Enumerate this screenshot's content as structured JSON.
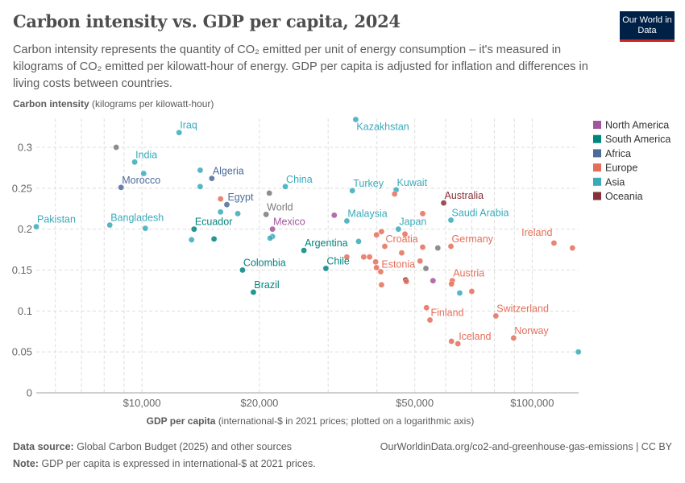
{
  "header": {
    "title": "Carbon intensity vs. GDP per capita, 2024",
    "subtitle": "Carbon intensity represents the quantity of CO₂ emitted per unit of energy consumption – it's measured in kilograms of CO₂ emitted per kilowatt-hour of energy. GDP per capita is adjusted for inflation and differences in living costs between countries.",
    "logo_text": "Our World in Data"
  },
  "footer": {
    "source_label": "Data source:",
    "source_text": "Global Carbon Budget (2025) and other sources",
    "url_text": "OurWorldinData.org/co2-and-greenhouse-gas-emissions | CC BY",
    "note_label": "Note:",
    "note_text": "GDP per capita is expressed in international-$ at 2021 prices."
  },
  "chart_data": {
    "type": "scatter",
    "ylabel_bold": "Carbon intensity",
    "ylabel_rest": "(kilograms per kilowatt-hour)",
    "xlabel_bold": "GDP per capita",
    "xlabel_rest": "(international-$ in 2021 prices; plotted on a logarithmic axis)",
    "x_scale": "log",
    "xlim": [
      5360,
      131500
    ],
    "ylim": [
      0,
      0.335
    ],
    "grid": true,
    "x_ticks": [
      {
        "value": 10000,
        "label": "$10,000"
      },
      {
        "value": 20000,
        "label": "$20,000"
      },
      {
        "value": 50000,
        "label": "$50,000"
      },
      {
        "value": 100000,
        "label": "$100,000"
      }
    ],
    "x_minor_gridlines": [
      6000,
      7000,
      8000,
      9000,
      30000,
      40000,
      60000,
      70000,
      80000,
      90000
    ],
    "y_ticks": [
      {
        "value": 0,
        "label": "0"
      },
      {
        "value": 0.05,
        "label": "0.05"
      },
      {
        "value": 0.1,
        "label": "0.1"
      },
      {
        "value": 0.15,
        "label": "0.15"
      },
      {
        "value": 0.2,
        "label": "0.2"
      },
      {
        "value": 0.25,
        "label": "0.25"
      },
      {
        "value": 0.3,
        "label": "0.3"
      }
    ],
    "legend_position": "right",
    "legend": [
      {
        "name": "North America",
        "color": "#a2559c"
      },
      {
        "name": "South America",
        "color": "#00847e"
      },
      {
        "name": "Africa",
        "color": "#4c6a9c"
      },
      {
        "name": "Europe",
        "color": "#e56e5a"
      },
      {
        "name": "Asia",
        "color": "#38aaba"
      },
      {
        "name": "Oceania",
        "color": "#883039"
      }
    ],
    "other_color": "#7a7a7a",
    "points": [
      {
        "label": "Pakistan",
        "region": "Asia",
        "x": 5360,
        "y": 0.203
      },
      {
        "label": "",
        "region": "",
        "x": 8590,
        "y": 0.3
      },
      {
        "label": "India",
        "region": "Asia",
        "x": 9580,
        "y": 0.282
      },
      {
        "label": "",
        "region": "Asia",
        "x": 10100,
        "y": 0.268
      },
      {
        "label": "Morocco",
        "region": "Africa",
        "x": 8840,
        "y": 0.251
      },
      {
        "label": "Bangladesh",
        "region": "Asia",
        "x": 8270,
        "y": 0.205
      },
      {
        "label": "",
        "region": "Asia",
        "x": 10200,
        "y": 0.201
      },
      {
        "label": "Iraq",
        "region": "Asia",
        "x": 12450,
        "y": 0.318
      },
      {
        "label": "",
        "region": "Asia",
        "x": 14100,
        "y": 0.272
      },
      {
        "label": "",
        "region": "Asia",
        "x": 14100,
        "y": 0.252
      },
      {
        "label": "Algeria",
        "region": "Africa",
        "x": 15100,
        "y": 0.262
      },
      {
        "label": "",
        "region": "Europe",
        "x": 15900,
        "y": 0.237
      },
      {
        "label": "Egypt",
        "region": "Africa",
        "x": 16500,
        "y": 0.23
      },
      {
        "label": "",
        "region": "Asia",
        "x": 15900,
        "y": 0.221
      },
      {
        "label": "",
        "region": "Asia",
        "x": 17600,
        "y": 0.219
      },
      {
        "label": "Ecuador",
        "region": "South America",
        "x": 13600,
        "y": 0.2
      },
      {
        "label": "",
        "region": "Asia",
        "x": 13400,
        "y": 0.187
      },
      {
        "label": "",
        "region": "South America",
        "x": 15300,
        "y": 0.188
      },
      {
        "label": "",
        "region": "",
        "x": 21200,
        "y": 0.244
      },
      {
        "label": "China",
        "region": "Asia",
        "x": 23300,
        "y": 0.252
      },
      {
        "label": "World",
        "region": "",
        "x": 20800,
        "y": 0.218
      },
      {
        "label": "Mexico",
        "region": "North America",
        "x": 21600,
        "y": 0.2
      },
      {
        "label": "",
        "region": "Asia",
        "x": 21600,
        "y": 0.191
      },
      {
        "label": "",
        "region": "Asia",
        "x": 21300,
        "y": 0.189
      },
      {
        "label": "Argentina",
        "region": "South America",
        "x": 26000,
        "y": 0.174
      },
      {
        "label": "Colombia",
        "region": "South America",
        "x": 18100,
        "y": 0.15
      },
      {
        "label": "Brazil",
        "region": "South America",
        "x": 19300,
        "y": 0.123
      },
      {
        "label": "Chile",
        "region": "South America",
        "x": 29600,
        "y": 0.152
      },
      {
        "label": "Kazakhstan",
        "region": "Asia",
        "x": 35300,
        "y": 0.334
      },
      {
        "label": "Turkey",
        "region": "Asia",
        "x": 34600,
        "y": 0.247
      },
      {
        "label": "Kuwait",
        "region": "Asia",
        "x": 44800,
        "y": 0.248
      },
      {
        "label": "",
        "region": "Europe",
        "x": 44400,
        "y": 0.243
      },
      {
        "label": "Australia",
        "region": "Oceania",
        "x": 59300,
        "y": 0.232
      },
      {
        "label": "",
        "region": "North America",
        "x": 31100,
        "y": 0.217
      },
      {
        "label": "Malaysia",
        "region": "Asia",
        "x": 33500,
        "y": 0.21
      },
      {
        "label": "Saudi Arabia",
        "region": "Asia",
        "x": 61900,
        "y": 0.211
      },
      {
        "label": "",
        "region": "Europe",
        "x": 52400,
        "y": 0.219
      },
      {
        "label": "Japan",
        "region": "Asia",
        "x": 45400,
        "y": 0.2
      },
      {
        "label": "",
        "region": "Asia",
        "x": 35900,
        "y": 0.185
      },
      {
        "label": "",
        "region": "Europe",
        "x": 39900,
        "y": 0.193
      },
      {
        "label": "",
        "region": "Europe",
        "x": 41100,
        "y": 0.197
      },
      {
        "label": "",
        "region": "Europe",
        "x": 47200,
        "y": 0.194
      },
      {
        "label": "Croatia",
        "region": "Europe",
        "x": 41900,
        "y": 0.179
      },
      {
        "label": "",
        "region": "Europe",
        "x": 46300,
        "y": 0.171
      },
      {
        "label": "",
        "region": "Europe",
        "x": 52400,
        "y": 0.178
      },
      {
        "label": "",
        "region": "",
        "x": 57300,
        "y": 0.177
      },
      {
        "label": "Germany",
        "region": "Europe",
        "x": 61900,
        "y": 0.179
      },
      {
        "label": "Ireland",
        "region": "Europe",
        "x": 113700,
        "y": 0.183
      },
      {
        "label": "",
        "region": "Europe",
        "x": 126800,
        "y": 0.177
      },
      {
        "label": "",
        "region": "Europe",
        "x": 33500,
        "y": 0.166
      },
      {
        "label": "",
        "region": "Europe",
        "x": 37000,
        "y": 0.166
      },
      {
        "label": "",
        "region": "Europe",
        "x": 38300,
        "y": 0.166
      },
      {
        "label": "",
        "region": "Europe",
        "x": 39700,
        "y": 0.16
      },
      {
        "label": "",
        "region": "Europe",
        "x": 39900,
        "y": 0.153
      },
      {
        "label": "Estonia",
        "region": "Europe",
        "x": 40900,
        "y": 0.148
      },
      {
        "label": "",
        "region": "Europe",
        "x": 51600,
        "y": 0.161
      },
      {
        "label": "",
        "region": "",
        "x": 53400,
        "y": 0.152
      },
      {
        "label": "",
        "region": "Oceania",
        "x": 47400,
        "y": 0.138
      },
      {
        "label": "",
        "region": "Europe",
        "x": 47600,
        "y": 0.136
      },
      {
        "label": "",
        "region": "North America",
        "x": 55700,
        "y": 0.137
      },
      {
        "label": "Austria",
        "region": "Europe",
        "x": 62400,
        "y": 0.137
      },
      {
        "label": "",
        "region": "Europe",
        "x": 62100,
        "y": 0.133
      },
      {
        "label": "",
        "region": "Europe",
        "x": 41100,
        "y": 0.132
      },
      {
        "label": "",
        "region": "Asia",
        "x": 65200,
        "y": 0.122
      },
      {
        "label": "",
        "region": "Europe",
        "x": 70000,
        "y": 0.124
      },
      {
        "label": "",
        "region": "Europe",
        "x": 53600,
        "y": 0.104
      },
      {
        "label": "Finland",
        "region": "Europe",
        "x": 54700,
        "y": 0.089
      },
      {
        "label": "Switzerland",
        "region": "Europe",
        "x": 80700,
        "y": 0.094
      },
      {
        "label": "",
        "region": "Europe",
        "x": 62100,
        "y": 0.063
      },
      {
        "label": "Iceland",
        "region": "Europe",
        "x": 64500,
        "y": 0.06
      },
      {
        "label": "Norway",
        "region": "Europe",
        "x": 89600,
        "y": 0.067
      },
      {
        "label": "",
        "region": "Asia",
        "x": 131300,
        "y": 0.05
      }
    ]
  }
}
